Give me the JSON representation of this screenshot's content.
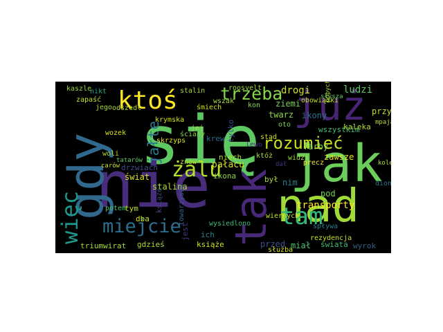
{
  "wordcloud": {
    "background": "#000000",
    "palette": [
      "#440154",
      "#3b528b",
      "#21918c",
      "#5ec962",
      "#fde725"
    ],
    "words": [
      {
        "text": "się",
        "color": "#5ec962"
      },
      {
        "text": "nie",
        "color": "#472d7b"
      },
      {
        "text": "jak",
        "color": "#6ccd5a"
      },
      {
        "text": "nad",
        "color": "#a0da39"
      },
      {
        "text": "już",
        "color": "#482475"
      },
      {
        "text": "gdy",
        "color": "#31688e"
      },
      {
        "text": "tak",
        "color": "#482878"
      },
      {
        "text": "ktoś",
        "color": "#fde725"
      },
      {
        "text": "trzeba",
        "color": "#86d549"
      },
      {
        "text": "miejcie",
        "color": "#2e6e8e"
      },
      {
        "text": "więc",
        "color": "#1f968b"
      },
      {
        "text": "tam",
        "color": "#35b779"
      },
      {
        "text": "rozumieć",
        "color": "#c8e020"
      },
      {
        "text": "żalu",
        "color": "#b5de2b"
      },
      {
        "text": "jałte",
        "color": "#2a788e"
      },
      {
        "text": "transporty",
        "color": "#fde725"
      },
      {
        "text": "ludzi",
        "color": "#5ec962"
      },
      {
        "text": "drogi",
        "color": "#cfe11c"
      },
      {
        "text": "stalin",
        "color": "#a8db34"
      },
      {
        "text": "ziemi",
        "color": "#7ad151"
      },
      {
        "text": "ikony",
        "color": "#2c728e"
      },
      {
        "text": "przy",
        "color": "#b8de29"
      },
      {
        "text": "zawsze",
        "color": "#e5e419"
      },
      {
        "text": "farby",
        "color": "#7fd34e"
      },
      {
        "text": "pałacu",
        "color": "#d5e21a"
      },
      {
        "text": "niech",
        "color": "#b2dd2d"
      },
      {
        "text": "ikona",
        "color": "#90d743"
      },
      {
        "text": "świat",
        "color": "#dde318"
      },
      {
        "text": "stalina",
        "color": "#b0dd2f"
      },
      {
        "text": "drzwiach",
        "color": "#3e4a89"
      },
      {
        "text": "przed",
        "color": "#3b528b"
      },
      {
        "text": "miał",
        "color": "#4ac16d"
      },
      {
        "text": "świata",
        "color": "#3dbc74"
      },
      {
        "text": "wyrok",
        "color": "#355f8d"
      },
      {
        "text": "triumwirat",
        "color": "#a2da37"
      },
      {
        "text": "gdzieś",
        "color": "#addc30"
      },
      {
        "text": "książe",
        "color": "#cde11d"
      },
      {
        "text": "jest",
        "color": "#443a83"
      },
      {
        "text": "ich",
        "color": "#277f8e"
      },
      {
        "text": "tym",
        "color": "#c0df25"
      },
      {
        "text": "dba",
        "color": "#cfe11c"
      },
      {
        "text": "potem",
        "color": "#4ec36b"
      },
      {
        "text": "towarzyszy",
        "color": "#355f8d"
      },
      {
        "text": "wysiedlono",
        "color": "#3dbc74"
      },
      {
        "text": "wiernych",
        "color": "#cde11d"
      },
      {
        "text": "spływa",
        "color": "#277f8e"
      },
      {
        "text": "rezydencja",
        "color": "#c8e020"
      },
      {
        "text": "nim",
        "color": "#26828e"
      },
      {
        "text": "pod",
        "color": "#75d054"
      },
      {
        "text": "dion",
        "color": "#2c728e"
      },
      {
        "text": "był",
        "color": "#a8db34"
      },
      {
        "text": "twarz",
        "color": "#8bd646"
      },
      {
        "text": "oto",
        "color": "#7ad151"
      },
      {
        "text": "wszystkim",
        "color": "#46c06f"
      },
      {
        "text": "kaleka",
        "color": "#b5de2b"
      },
      {
        "text": "krew",
        "color": "#2e6e8e"
      },
      {
        "text": "lewo",
        "color": "#46327e"
      },
      {
        "text": "ściany",
        "color": "#8bd646"
      },
      {
        "text": "znów",
        "color": "#c8e020"
      },
      {
        "text": "skrzyps",
        "color": "#dde318"
      },
      {
        "text": "woli",
        "color": "#addc30"
      },
      {
        "text": "odszedł",
        "color": "#b5de2b"
      },
      {
        "text": "śmiech",
        "color": "#d5e21a"
      },
      {
        "text": "wszak",
        "color": "#a5db36"
      },
      {
        "text": "jego",
        "color": "#a8db34"
      },
      {
        "text": "nikt",
        "color": "#22a884"
      },
      {
        "text": "zapaść",
        "color": "#c8e020"
      },
      {
        "text": "kaszle",
        "color": "#9fda3a"
      },
      {
        "text": "roosvelt",
        "color": "#a2da37"
      },
      {
        "text": "kon",
        "color": "#8bd646"
      },
      {
        "text": "obowiązki",
        "color": "#c0df25"
      },
      {
        "text": "tylko",
        "color": "#3e4a89"
      },
      {
        "text": "wozek",
        "color": "#dde318"
      },
      {
        "text": "jej",
        "color": "#a2da37"
      },
      {
        "text": "krymska",
        "color": "#d5e21a"
      },
      {
        "text": "tatarów",
        "color": "#5ec962"
      },
      {
        "text": "carów",
        "color": "#cfe11c"
      },
      {
        "text": "stąd",
        "color": "#cfe11c"
      },
      {
        "text": "któż",
        "color": "#a8db34"
      },
      {
        "text": "widzi",
        "color": "#9fda3a"
      },
      {
        "text": "precz",
        "color": "#fde725"
      },
      {
        "text": "książe",
        "color": "#3e4a89"
      },
      {
        "text": "służba",
        "color": "#d5e21a"
      },
      {
        "text": "słysza",
        "color": "#5ec962"
      },
      {
        "text": "popychany",
        "color": "#addc30"
      },
      {
        "text": "mpaja",
        "color": "#b5de2b"
      },
      {
        "text": "kolejna",
        "color": "#b5de2b"
      },
      {
        "text": "dał",
        "color": "#46327e"
      }
    ]
  }
}
